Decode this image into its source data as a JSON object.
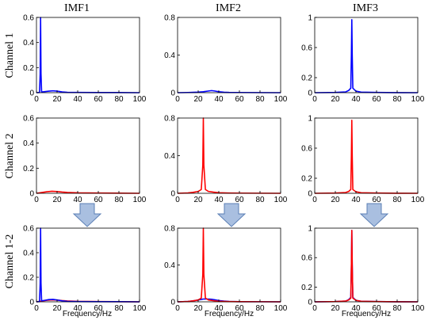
{
  "column_titles": [
    "IMF1",
    "IMF2",
    "IMF3"
  ],
  "row_labels": [
    "Channel 1",
    "Channel 2",
    "Channel 1-2"
  ],
  "xlabel": "Frequency/Hz",
  "colors": {
    "blue": "#0000ff",
    "red": "#ff0000",
    "arrow_fill": "#a9bfe0",
    "arrow_stroke": "#5b7fb5"
  },
  "x_ticks": [
    "0",
    "20",
    "40",
    "60",
    "80",
    "100"
  ],
  "chart_data": [
    {
      "type": "line",
      "xlim": [
        0,
        100
      ],
      "ylim": [
        0,
        0.6
      ],
      "yticks": [
        "0",
        "0.2",
        "0.4",
        "0.6"
      ],
      "series": [
        {
          "color": "blue",
          "x": [
            0,
            3,
            3.6,
            4.0,
            4.4,
            5,
            8,
            12,
            16,
            20,
            25,
            30,
            40,
            60,
            80,
            100
          ],
          "y": [
            0,
            0.002,
            0.15,
            0.6,
            0.15,
            0.005,
            0.008,
            0.012,
            0.015,
            0.012,
            0.006,
            0.003,
            0.002,
            0.001,
            0.001,
            0
          ]
        }
      ]
    },
    {
      "type": "line",
      "xlim": [
        0,
        100
      ],
      "ylim": [
        0,
        0.8
      ],
      "yticks": [
        "0",
        "0.4",
        "0.8"
      ],
      "series": [
        {
          "color": "blue",
          "x": [
            0,
            10,
            15,
            20,
            25,
            30,
            33,
            36,
            40,
            45,
            50,
            60,
            80,
            100
          ],
          "y": [
            0,
            0.002,
            0.004,
            0.006,
            0.01,
            0.018,
            0.022,
            0.018,
            0.01,
            0.005,
            0.003,
            0.002,
            0.001,
            0
          ]
        }
      ]
    },
    {
      "type": "line",
      "xlim": [
        0,
        100
      ],
      "ylim": [
        0,
        1
      ],
      "yticks": [
        "0",
        "0.2",
        "0.6",
        "1"
      ],
      "series": [
        {
          "color": "blue",
          "x": [
            0,
            20,
            30,
            33,
            35,
            35.6,
            36.0,
            36.4,
            37,
            40,
            45,
            60,
            80,
            100
          ],
          "y": [
            0,
            0.003,
            0.01,
            0.03,
            0.06,
            0.5,
            0.97,
            0.5,
            0.06,
            0.02,
            0.008,
            0.003,
            0.001,
            0
          ]
        }
      ]
    },
    {
      "type": "line",
      "xlim": [
        0,
        100
      ],
      "ylim": [
        0,
        0.6
      ],
      "yticks": [
        "0",
        "0.2",
        "0.4",
        "0.6"
      ],
      "series": [
        {
          "color": "red",
          "x": [
            0,
            5,
            10,
            15,
            20,
            25,
            30,
            40,
            50,
            60,
            80,
            100
          ],
          "y": [
            0,
            0.006,
            0.012,
            0.016,
            0.014,
            0.01,
            0.007,
            0.004,
            0.003,
            0.002,
            0.001,
            0
          ]
        }
      ]
    },
    {
      "type": "line",
      "xlim": [
        0,
        100
      ],
      "ylim": [
        0,
        0.8
      ],
      "yticks": [
        "0",
        "0.4",
        "0.8"
      ],
      "series": [
        {
          "color": "red",
          "x": [
            0,
            10,
            15,
            20,
            23,
            24.5,
            25.0,
            25.5,
            27,
            30,
            35,
            40,
            50,
            60,
            80,
            100
          ],
          "y": [
            0,
            0.004,
            0.01,
            0.02,
            0.04,
            0.3,
            0.8,
            0.3,
            0.04,
            0.02,
            0.012,
            0.006,
            0.003,
            0.002,
            0.001,
            0
          ]
        }
      ]
    },
    {
      "type": "line",
      "xlim": [
        0,
        100
      ],
      "ylim": [
        0,
        1
      ],
      "yticks": [
        "0",
        "0.2",
        "0.6",
        "1"
      ],
      "series": [
        {
          "color": "red",
          "x": [
            0,
            20,
            30,
            33,
            35,
            35.6,
            36.0,
            36.4,
            37,
            40,
            45,
            60,
            80,
            100
          ],
          "y": [
            0,
            0.003,
            0.01,
            0.025,
            0.05,
            0.5,
            0.97,
            0.5,
            0.05,
            0.02,
            0.008,
            0.003,
            0.001,
            0
          ]
        }
      ]
    },
    {
      "type": "line",
      "xlim": [
        0,
        100
      ],
      "ylim": [
        0,
        0.6
      ],
      "yticks": [
        "0",
        "0.2",
        "0.4",
        "0.6"
      ],
      "series": [
        {
          "color": "red",
          "x": [
            0,
            5,
            10,
            15,
            20,
            25,
            30,
            40,
            50,
            60,
            80,
            100
          ],
          "y": [
            0,
            0.006,
            0.012,
            0.016,
            0.014,
            0.01,
            0.007,
            0.004,
            0.003,
            0.002,
            0.001,
            0
          ]
        },
        {
          "color": "blue",
          "x": [
            0,
            3,
            3.6,
            4.0,
            4.4,
            5,
            8,
            12,
            16,
            20,
            25,
            30,
            40,
            60,
            80,
            100
          ],
          "y": [
            0,
            0.002,
            0.15,
            0.6,
            0.15,
            0.008,
            0.012,
            0.018,
            0.02,
            0.015,
            0.008,
            0.004,
            0.002,
            0.001,
            0.001,
            0
          ]
        }
      ]
    },
    {
      "type": "line",
      "xlim": [
        0,
        100
      ],
      "ylim": [
        0,
        0.8
      ],
      "yticks": [
        "0",
        "0.4",
        "0.8"
      ],
      "series": [
        {
          "color": "blue",
          "x": [
            0,
            10,
            15,
            20,
            25,
            30,
            33,
            36,
            40,
            45,
            50,
            60,
            80,
            100
          ],
          "y": [
            0,
            0.004,
            0.01,
            0.02,
            0.03,
            0.03,
            0.028,
            0.022,
            0.014,
            0.008,
            0.004,
            0.002,
            0.001,
            0
          ]
        },
        {
          "color": "red",
          "x": [
            0,
            10,
            15,
            20,
            23,
            24.5,
            25.0,
            25.5,
            27,
            30,
            35,
            40,
            50,
            60,
            80,
            100
          ],
          "y": [
            0,
            0.004,
            0.01,
            0.02,
            0.04,
            0.3,
            0.8,
            0.3,
            0.04,
            0.02,
            0.012,
            0.006,
            0.003,
            0.002,
            0.001,
            0
          ]
        }
      ]
    },
    {
      "type": "line",
      "xlim": [
        0,
        100
      ],
      "ylim": [
        0,
        1
      ],
      "yticks": [
        "0",
        "0.2",
        "0.6",
        "1"
      ],
      "series": [
        {
          "color": "blue",
          "x": [
            0,
            20,
            30,
            33,
            35,
            35.6,
            36.0,
            36.4,
            37,
            40,
            45,
            60,
            80,
            100
          ],
          "y": [
            0,
            0.003,
            0.01,
            0.03,
            0.06,
            0.5,
            0.97,
            0.5,
            0.06,
            0.02,
            0.008,
            0.003,
            0.001,
            0
          ]
        },
        {
          "color": "red",
          "x": [
            0,
            20,
            30,
            33,
            35,
            35.6,
            36.0,
            36.4,
            37,
            40,
            45,
            60,
            80,
            100
          ],
          "y": [
            0,
            0.003,
            0.01,
            0.025,
            0.05,
            0.5,
            0.97,
            0.5,
            0.05,
            0.02,
            0.008,
            0.003,
            0.001,
            0
          ]
        }
      ]
    }
  ]
}
